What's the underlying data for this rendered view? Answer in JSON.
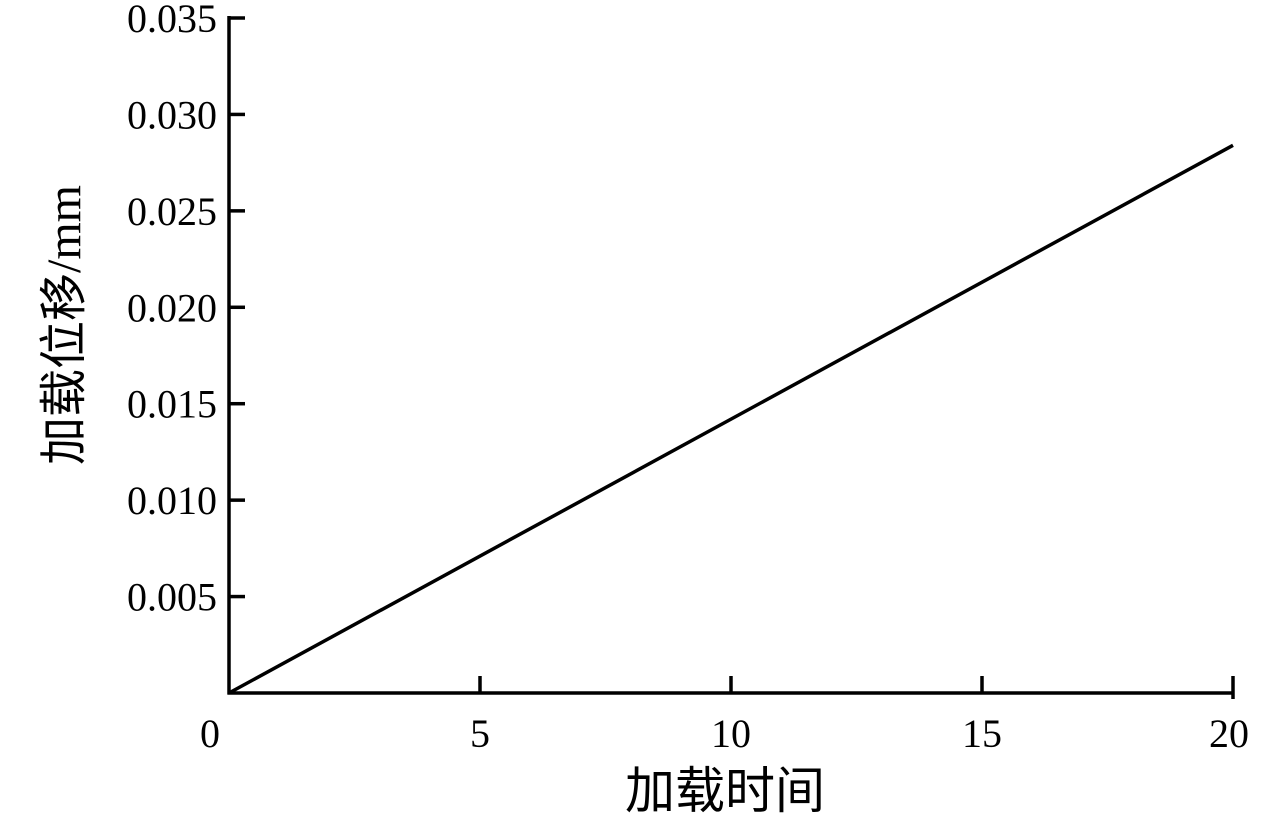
{
  "chart_data": {
    "type": "line",
    "title": "",
    "xlabel": "加载时间",
    "ylabel": "加载位移/mm",
    "xlim": [
      0,
      20
    ],
    "ylim": [
      0,
      0.035
    ],
    "xticks": [
      "0",
      "5",
      "10",
      "15",
      "20"
    ],
    "xtick_values": [
      0,
      5,
      10,
      15,
      20
    ],
    "yticks": [
      "0.005",
      "0.010",
      "0.015",
      "0.020",
      "0.025",
      "0.030",
      "0.035"
    ],
    "ytick_values": [
      0.005,
      0.01,
      0.015,
      0.02,
      0.025,
      0.03,
      0.035
    ],
    "grid": false,
    "series": [
      {
        "x": [
          0,
          20
        ],
        "y": [
          0,
          0.0284
        ],
        "color": "#000000"
      }
    ]
  }
}
